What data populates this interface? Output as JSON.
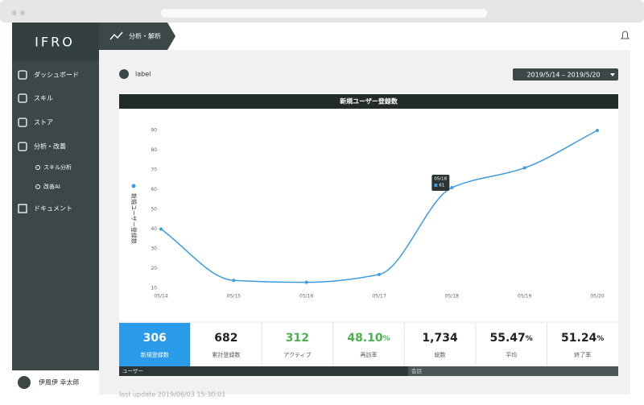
{
  "sidebar": {
    "logo": "IFRO",
    "menu": [
      "ダッシュボード",
      "スキル",
      "ストア",
      "分析・改善"
    ],
    "submenu": [
      "スキル分析",
      "改善AI"
    ],
    "menu_bottom": "ドキュメント",
    "user": "伊風伊 幸太郎"
  },
  "header": {
    "breadcrumb": "分析・解析"
  },
  "toolbar": {
    "label": "label",
    "date_range": "2019/5/14 – 2019/5/20"
  },
  "chart_data": {
    "type": "line",
    "title": "新規ユーザー登録数",
    "categories": [
      "05/14",
      "05/15",
      "05/16",
      "05/17",
      "05/18",
      "05/19",
      "05/20"
    ],
    "series": [
      {
        "name": "新規ユーザー登録数",
        "color": "#3d9be0",
        "values": [
          40,
          14,
          13,
          17,
          61,
          71,
          90
        ]
      }
    ],
    "ylim": [
      10,
      90
    ],
    "yticks": [
      10,
      20,
      30,
      40,
      50,
      60,
      70,
      80,
      90
    ],
    "grid": false
  },
  "stats": [
    {
      "value": "306",
      "label": "新規登録数",
      "highlight": true
    },
    {
      "value": "682",
      "label": "累計登録数"
    },
    {
      "value": "312",
      "label": "アクティブ",
      "color": "#4caf50"
    },
    {
      "value": "48.10",
      "unit": "%",
      "label": "再訪率",
      "color": "#4caf50"
    },
    {
      "value": "1,734",
      "label": "総数"
    },
    {
      "value": "55.47",
      "unit": "%",
      "label": "平均"
    },
    {
      "value": "51.24",
      "unit": "%",
      "label": "終了率"
    }
  ],
  "sections": [
    "ユーザー",
    "会話"
  ],
  "footer": {
    "last_update": "last update 2019/06/03 15:30:01"
  }
}
